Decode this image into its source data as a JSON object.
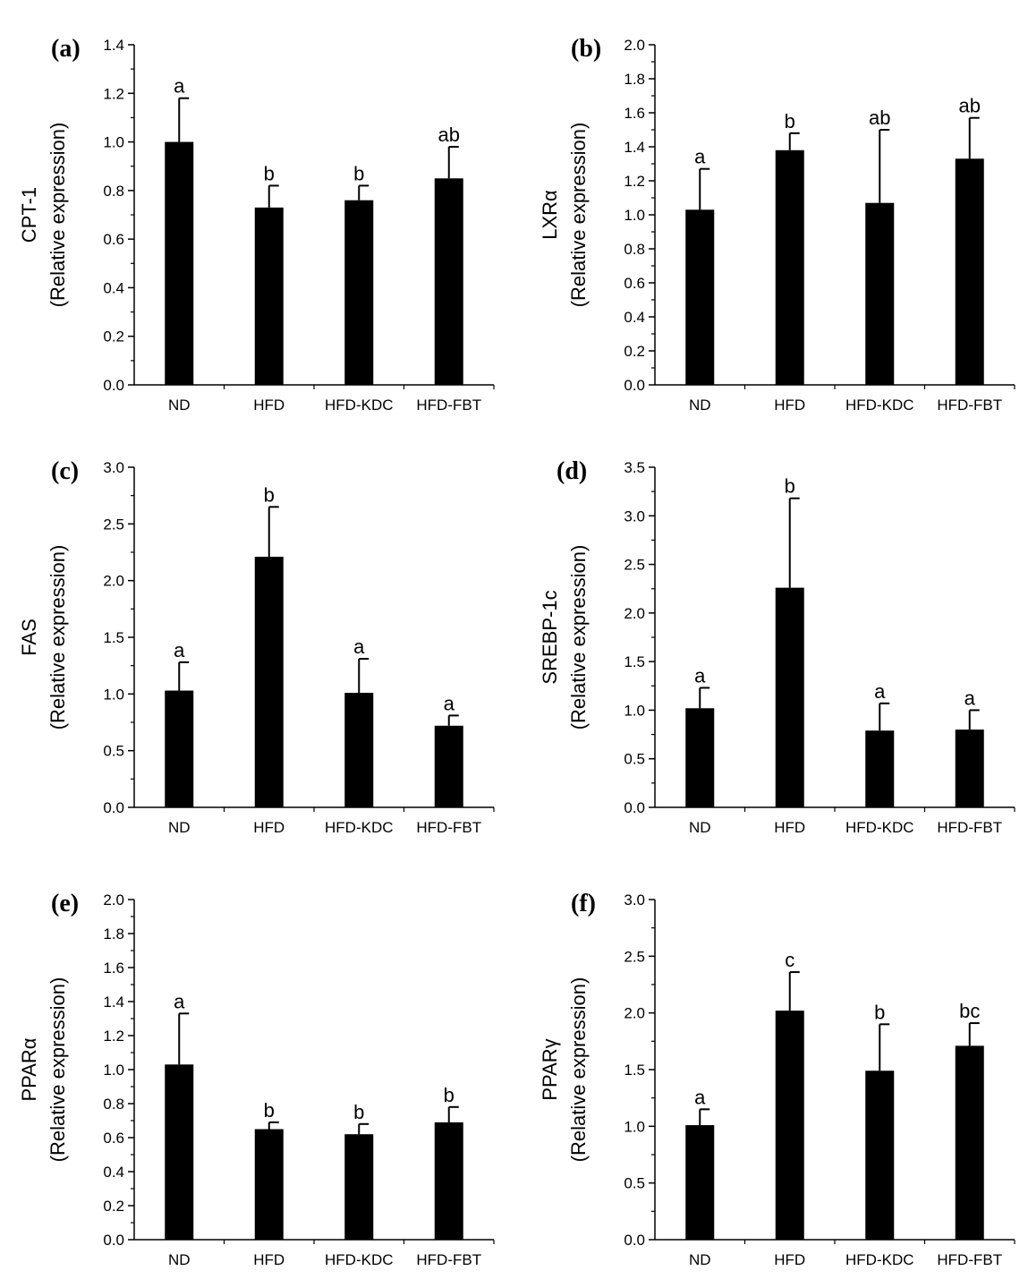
{
  "chart_data": [
    {
      "type": "bar",
      "panel": "(a)",
      "ylabel": "CPT-1",
      "ylabel_sub": "(Relative expression)",
      "categories": [
        "ND",
        "HFD",
        "HFD-KDC",
        "HFD-FBT"
      ],
      "values": [
        1.0,
        0.73,
        0.76,
        0.85
      ],
      "errors": [
        0.18,
        0.09,
        0.06,
        0.13
      ],
      "labels": [
        "a",
        "b",
        "b",
        "ab"
      ],
      "ylim": [
        0,
        1.4
      ],
      "yticks": [
        "0.0",
        "0.2",
        "0.4",
        "0.6",
        "0.8",
        "1.0",
        "1.2",
        "1.4"
      ],
      "color": "#000000"
    },
    {
      "type": "bar",
      "panel": "(b)",
      "ylabel": "LXRα",
      "ylabel_sub": "(Relative expression)",
      "categories": [
        "ND",
        "HFD",
        "HFD-KDC",
        "HFD-FBT"
      ],
      "values": [
        1.03,
        1.38,
        1.07,
        1.33
      ],
      "errors": [
        0.24,
        0.1,
        0.43,
        0.24
      ],
      "labels": [
        "a",
        "b",
        "ab",
        "ab"
      ],
      "ylim": [
        0,
        2.0
      ],
      "yticks": [
        "0.0",
        "0.2",
        "0.4",
        "0.6",
        "0.8",
        "1.0",
        "1.2",
        "1.4",
        "1.6",
        "1.8",
        "2.0"
      ],
      "color": "#000000"
    },
    {
      "type": "bar",
      "panel": "(c)",
      "ylabel": "FAS",
      "ylabel_sub": "(Relative expression)",
      "categories": [
        "ND",
        "HFD",
        "HFD-KDC",
        "HFD-FBT"
      ],
      "values": [
        1.03,
        2.21,
        1.01,
        0.72
      ],
      "errors": [
        0.25,
        0.44,
        0.3,
        0.09
      ],
      "labels": [
        "a",
        "b",
        "a",
        "a"
      ],
      "ylim": [
        0,
        3.0
      ],
      "yticks": [
        "0.0",
        "0.5",
        "1.0",
        "1.5",
        "2.0",
        "2.5",
        "3.0"
      ],
      "color": "#000000"
    },
    {
      "type": "bar",
      "panel": "(d)",
      "ylabel": "SREBP-1c",
      "ylabel_sub": "(Relative expression)",
      "categories": [
        "ND",
        "HFD",
        "HFD-KDC",
        "HFD-FBT"
      ],
      "values": [
        1.02,
        2.26,
        0.79,
        0.8
      ],
      "errors": [
        0.21,
        0.92,
        0.28,
        0.2
      ],
      "labels": [
        "a",
        "b",
        "a",
        "a"
      ],
      "ylim": [
        0,
        3.5
      ],
      "yticks": [
        "0.0",
        "0.5",
        "1.0",
        "1.5",
        "2.0",
        "2.5",
        "3.0",
        "3.5"
      ],
      "color": "#000000"
    },
    {
      "type": "bar",
      "panel": "(e)",
      "ylabel": "PPARα",
      "ylabel_sub": "(Relative expression)",
      "categories": [
        "ND",
        "HFD",
        "HFD-KDC",
        "HFD-FBT"
      ],
      "values": [
        1.03,
        0.65,
        0.62,
        0.69
      ],
      "errors": [
        0.3,
        0.04,
        0.06,
        0.09
      ],
      "labels": [
        "a",
        "b",
        "b",
        "b"
      ],
      "ylim": [
        0,
        2.0
      ],
      "yticks": [
        "0.0",
        "0.2",
        "0.4",
        "0.6",
        "0.8",
        "1.0",
        "1.2",
        "1.4",
        "1.6",
        "1.8",
        "2.0"
      ],
      "color": "#000000"
    },
    {
      "type": "bar",
      "panel": "(f)",
      "ylabel": "PPARγ",
      "ylabel_sub": "(Relative expression)",
      "categories": [
        "ND",
        "HFD",
        "HFD-KDC",
        "HFD-FBT"
      ],
      "values": [
        1.01,
        2.02,
        1.49,
        1.71
      ],
      "errors": [
        0.14,
        0.34,
        0.41,
        0.2
      ],
      "labels": [
        "a",
        "c",
        "b",
        "bc"
      ],
      "ylim": [
        0,
        3.0
      ],
      "yticks": [
        "0.0",
        "0.5",
        "1.0",
        "1.5",
        "2.0",
        "2.5",
        "3.0"
      ],
      "color": "#000000"
    }
  ]
}
